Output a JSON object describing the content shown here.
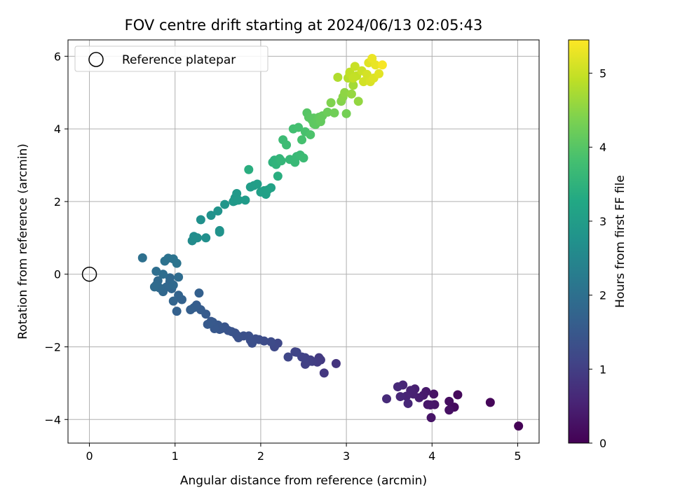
{
  "chart_data": {
    "type": "scatter",
    "title": "FOV centre drift starting at 2024/06/13 02:05:43",
    "xlabel": "Angular distance from reference (arcmin)",
    "ylabel": "Rotation from reference (arcmin)",
    "xlim": [
      -0.25,
      5.25
    ],
    "ylim": [
      -4.65,
      6.45
    ],
    "xticks": [
      0,
      1,
      2,
      3,
      4,
      5
    ],
    "yticks": [
      -4,
      -2,
      0,
      2,
      4,
      6
    ],
    "xtick_labels": [
      "0",
      "1",
      "2",
      "3",
      "4",
      "5"
    ],
    "ytick_labels": [
      "−4",
      "−2",
      "0",
      "2",
      "4",
      "6"
    ],
    "grid": true,
    "legend": {
      "placement": "top-left",
      "entries": [
        "Reference platepar"
      ]
    },
    "reference_point": {
      "x": 0,
      "y": 0,
      "label": "Reference platepar"
    },
    "colorbar": {
      "label": "Hours from first FF file",
      "range": [
        0,
        5.45
      ],
      "ticks": [
        0,
        1,
        2,
        3,
        4,
        5
      ],
      "tick_labels": [
        "0",
        "1",
        "2",
        "3",
        "4",
        "5"
      ],
      "colormap": "viridis"
    },
    "points": [
      [
        5.01,
        -4.18,
        0.02
      ],
      [
        4.68,
        -3.53,
        0.08
      ],
      [
        4.3,
        -3.32,
        0.12
      ],
      [
        4.26,
        -3.66,
        0.16
      ],
      [
        4.2,
        -3.5,
        0.2
      ],
      [
        4.2,
        -3.74,
        0.24
      ],
      [
        4.02,
        -3.3,
        0.28
      ],
      [
        3.99,
        -3.95,
        0.3
      ],
      [
        3.95,
        -3.59,
        0.34
      ],
      [
        3.93,
        -3.23,
        0.38
      ],
      [
        3.9,
        -3.33,
        0.4
      ],
      [
        3.85,
        -3.4,
        0.44
      ],
      [
        3.8,
        -3.16,
        0.46
      ],
      [
        3.78,
        -3.3,
        0.5
      ],
      [
        3.75,
        -3.2,
        0.52
      ],
      [
        3.7,
        -3.36,
        0.55
      ],
      [
        3.66,
        -3.05,
        0.58
      ],
      [
        3.63,
        -3.37,
        0.6
      ],
      [
        3.6,
        -3.1,
        0.63
      ],
      [
        3.47,
        -3.43,
        0.66
      ],
      [
        3.72,
        -3.56,
        0.6
      ],
      [
        3.98,
        -3.6,
        0.36
      ],
      [
        4.03,
        -3.59,
        0.32
      ],
      [
        2.88,
        -2.46,
        0.82
      ],
      [
        2.74,
        -2.72,
        0.88
      ],
      [
        2.7,
        -2.36,
        0.92
      ],
      [
        2.66,
        -2.42,
        0.96
      ],
      [
        2.6,
        -2.4,
        1.0
      ],
      [
        2.56,
        -2.4,
        1.03
      ],
      [
        2.52,
        -2.3,
        1.06
      ],
      [
        2.48,
        -2.28,
        1.08
      ],
      [
        2.42,
        -2.15,
        1.12
      ],
      [
        2.32,
        -2.28,
        1.15
      ],
      [
        2.2,
        -1.9,
        1.18
      ],
      [
        2.16,
        -2.0,
        1.2
      ],
      [
        2.12,
        -1.86,
        1.23
      ],
      [
        2.04,
        -1.84,
        1.26
      ],
      [
        1.98,
        -1.8,
        1.28
      ],
      [
        1.94,
        -1.78,
        1.3
      ],
      [
        1.9,
        -1.9,
        1.32
      ],
      [
        1.86,
        -1.7,
        1.34
      ],
      [
        1.74,
        -1.75,
        1.36
      ],
      [
        1.7,
        -1.62,
        1.38
      ],
      [
        1.66,
        -1.58,
        1.4
      ],
      [
        1.62,
        -1.55,
        1.42
      ],
      [
        1.58,
        -1.45,
        1.44
      ],
      [
        1.54,
        -1.5,
        1.46
      ],
      [
        1.5,
        -1.4,
        1.48
      ],
      [
        1.46,
        -1.5,
        1.5
      ],
      [
        1.42,
        -1.3,
        1.52
      ],
      [
        1.38,
        -1.38,
        1.54
      ],
      [
        1.36,
        -1.1,
        1.56
      ],
      [
        1.25,
        -0.85,
        1.6
      ],
      [
        1.22,
        -0.92,
        1.62
      ],
      [
        1.18,
        -0.98,
        1.64
      ],
      [
        1.28,
        -0.52,
        1.66
      ],
      [
        1.08,
        -0.7,
        1.7
      ],
      [
        1.04,
        -0.58,
        1.72
      ],
      [
        1.02,
        -1.02,
        1.68
      ],
      [
        0.98,
        -0.74,
        1.74
      ],
      [
        0.96,
        -0.4,
        1.76
      ],
      [
        0.94,
        -0.2,
        1.78
      ],
      [
        0.9,
        -0.35,
        1.8
      ],
      [
        0.86,
        -0.48,
        1.82
      ],
      [
        0.82,
        -0.38,
        1.84
      ],
      [
        0.8,
        -0.18,
        1.86
      ],
      [
        0.78,
        -0.3,
        1.88
      ],
      [
        0.76,
        -0.35,
        1.9
      ],
      [
        0.94,
        -0.1,
        1.84
      ],
      [
        0.98,
        -0.3,
        1.86
      ],
      [
        1.04,
        -0.08,
        1.92
      ],
      [
        0.86,
        0.0,
        1.94
      ],
      [
        0.78,
        0.08,
        1.96
      ],
      [
        0.62,
        0.45,
        2.0
      ],
      [
        0.88,
        0.36,
        2.04
      ],
      [
        0.92,
        0.44,
        2.06
      ],
      [
        0.98,
        0.42,
        2.08
      ],
      [
        1.02,
        0.3,
        2.1
      ],
      [
        2.68,
        -2.3,
        0.92
      ],
      [
        2.58,
        -2.36,
        1.0
      ],
      [
        2.52,
        -2.48,
        1.04
      ],
      [
        2.4,
        -2.14,
        1.1
      ],
      [
        1.88,
        -1.82,
        1.3
      ],
      [
        1.8,
        -1.7,
        1.34
      ],
      [
        1.72,
        -1.68,
        1.37
      ],
      [
        1.52,
        -1.52,
        1.45
      ],
      [
        1.44,
        -1.32,
        1.5
      ],
      [
        1.3,
        -0.98,
        1.58
      ],
      [
        1.2,
        0.92,
        2.6
      ],
      [
        1.22,
        1.04,
        2.64
      ],
      [
        1.26,
        1.0,
        2.66
      ],
      [
        1.3,
        1.5,
        2.7
      ],
      [
        1.42,
        1.62,
        2.74
      ],
      [
        1.5,
        1.74,
        2.78
      ],
      [
        1.52,
        1.2,
        2.76
      ],
      [
        1.52,
        1.16,
        2.78
      ],
      [
        1.58,
        1.92,
        2.84
      ],
      [
        1.68,
        2.0,
        2.88
      ],
      [
        1.7,
        2.1,
        2.9
      ],
      [
        1.72,
        2.22,
        2.92
      ],
      [
        1.74,
        2.04,
        2.94
      ],
      [
        1.82,
        2.04,
        2.96
      ],
      [
        1.86,
        2.88,
        3.4
      ],
      [
        1.88,
        2.4,
        3.0
      ],
      [
        1.92,
        2.44,
        3.02
      ],
      [
        1.96,
        2.48,
        3.04
      ],
      [
        2.0,
        2.26,
        3.06
      ],
      [
        2.04,
        2.3,
        3.08
      ],
      [
        2.08,
        2.32,
        3.1
      ],
      [
        2.12,
        2.38,
        3.12
      ],
      [
        2.14,
        3.08,
        3.48
      ],
      [
        2.16,
        3.14,
        3.5
      ],
      [
        2.18,
        3.02,
        3.52
      ],
      [
        2.2,
        2.7,
        3.4
      ],
      [
        2.22,
        3.18,
        3.56
      ],
      [
        2.24,
        3.12,
        3.58
      ],
      [
        2.26,
        3.7,
        3.7
      ],
      [
        2.3,
        3.56,
        3.72
      ],
      [
        2.34,
        3.16,
        3.62
      ],
      [
        2.38,
        4.0,
        3.78
      ],
      [
        2.4,
        3.08,
        3.64
      ],
      [
        2.42,
        3.24,
        3.66
      ],
      [
        2.44,
        4.04,
        3.82
      ],
      [
        2.46,
        3.28,
        3.68
      ],
      [
        2.48,
        3.7,
        3.84
      ],
      [
        2.5,
        3.2,
        3.7
      ],
      [
        2.52,
        3.92,
        3.86
      ],
      [
        2.54,
        4.44,
        4.0
      ],
      [
        2.56,
        4.32,
        4.02
      ],
      [
        2.58,
        3.84,
        3.9
      ],
      [
        2.6,
        4.24,
        4.04
      ],
      [
        2.62,
        4.3,
        4.06
      ],
      [
        2.64,
        4.12,
        4.08
      ],
      [
        2.66,
        4.22,
        4.1
      ],
      [
        2.68,
        4.32,
        4.12
      ],
      [
        2.7,
        4.2,
        4.14
      ],
      [
        2.72,
        4.36,
        4.16
      ],
      [
        2.78,
        4.46,
        4.22
      ],
      [
        2.82,
        4.72,
        4.4
      ],
      [
        2.86,
        4.44,
        4.26
      ],
      [
        2.9,
        5.42,
        4.8
      ],
      [
        2.94,
        4.76,
        4.44
      ],
      [
        2.96,
        4.88,
        4.48
      ],
      [
        2.98,
        5.0,
        4.52
      ],
      [
        3.0,
        4.42,
        4.3
      ],
      [
        3.02,
        5.4,
        4.84
      ],
      [
        3.04,
        5.52,
        4.9
      ],
      [
        3.06,
        4.96,
        4.58
      ],
      [
        3.08,
        5.2,
        4.7
      ],
      [
        3.1,
        5.72,
        5.0
      ],
      [
        3.12,
        5.46,
        4.94
      ],
      [
        3.14,
        4.76,
        4.56
      ],
      [
        3.18,
        5.6,
        5.04
      ],
      [
        3.2,
        5.3,
        5.08
      ],
      [
        3.24,
        5.5,
        5.1
      ],
      [
        3.26,
        5.82,
        5.2
      ],
      [
        3.28,
        5.3,
        5.14
      ],
      [
        3.3,
        5.94,
        5.3
      ],
      [
        3.32,
        5.4,
        5.18
      ],
      [
        3.34,
        5.76,
        5.28
      ],
      [
        3.38,
        5.52,
        5.22
      ],
      [
        3.42,
        5.76,
        5.4
      ],
      [
        3.04,
        5.56,
        4.92
      ],
      [
        3.08,
        5.4,
        4.96
      ],
      [
        2.58,
        4.3,
        4.04
      ],
      [
        2.62,
        4.14,
        4.08
      ],
      [
        2.7,
        4.28,
        4.14
      ],
      [
        2.06,
        2.2,
        3.07
      ],
      [
        1.7,
        2.02,
        2.92
      ],
      [
        1.36,
        1.0,
        2.68
      ]
    ]
  }
}
